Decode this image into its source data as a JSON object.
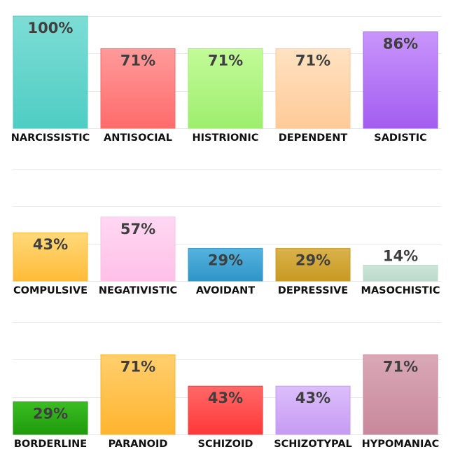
{
  "chart_data": [
    {
      "type": "bar",
      "categories": [
        "NARCISSISTIC",
        "ANTISOCIAL",
        "HISTRIONIC",
        "DEPENDENT",
        "SADISTIC"
      ],
      "values": [
        100,
        71,
        71,
        71,
        86
      ],
      "value_labels": [
        "100%",
        "71%",
        "71%",
        "71%",
        "86%"
      ],
      "colors": [
        [
          "#7dddd5",
          "#4fcdc3"
        ],
        [
          "#ff9a9a",
          "#ff6b6b"
        ],
        [
          "#c2fb98",
          "#9eee6e"
        ],
        [
          "#ffe2c2",
          "#ffca97"
        ],
        [
          "#c895fb",
          "#a35df0"
        ]
      ],
      "ylim": [
        0,
        100
      ],
      "grid": true
    },
    {
      "type": "bar",
      "categories": [
        "COMPULSIVE",
        "NEGATIVISTIC",
        "AVOIDANT",
        "DEPRESSIVE",
        "MASOCHISTIC"
      ],
      "values": [
        43,
        57,
        29,
        29,
        14
      ],
      "value_labels": [
        "43%",
        "57%",
        "29%",
        "29%",
        "14%"
      ],
      "colors": [
        [
          "#ffd97a",
          "#ffbb38"
        ],
        [
          "#ffd8f2",
          "#ffbfe8"
        ],
        [
          "#55b3de",
          "#2f94c8"
        ],
        [
          "#dab24c",
          "#c89a22"
        ],
        [
          "#cde5d9",
          "#bcd9cb"
        ]
      ],
      "ylim": [
        0,
        100
      ],
      "grid": true
    },
    {
      "type": "bar",
      "categories": [
        "BORDERLINE",
        "PARANOID",
        "SCHIZOID",
        "SCHIZOTYPAL",
        "HYPOMANIAC"
      ],
      "values": [
        29,
        71,
        43,
        43,
        71
      ],
      "value_labels": [
        "29%",
        "71%",
        "43%",
        "43%",
        "71%"
      ],
      "colors": [
        [
          "#3bbd22",
          "#1f9a0d"
        ],
        [
          "#ffcf6e",
          "#ffb42e"
        ],
        [
          "#ff6868",
          "#ff3838"
        ],
        [
          "#dcbefb",
          "#c69bf3"
        ],
        [
          "#d9a8b7",
          "#c8889c"
        ]
      ],
      "ylim": [
        0,
        100
      ],
      "grid": true
    }
  ]
}
